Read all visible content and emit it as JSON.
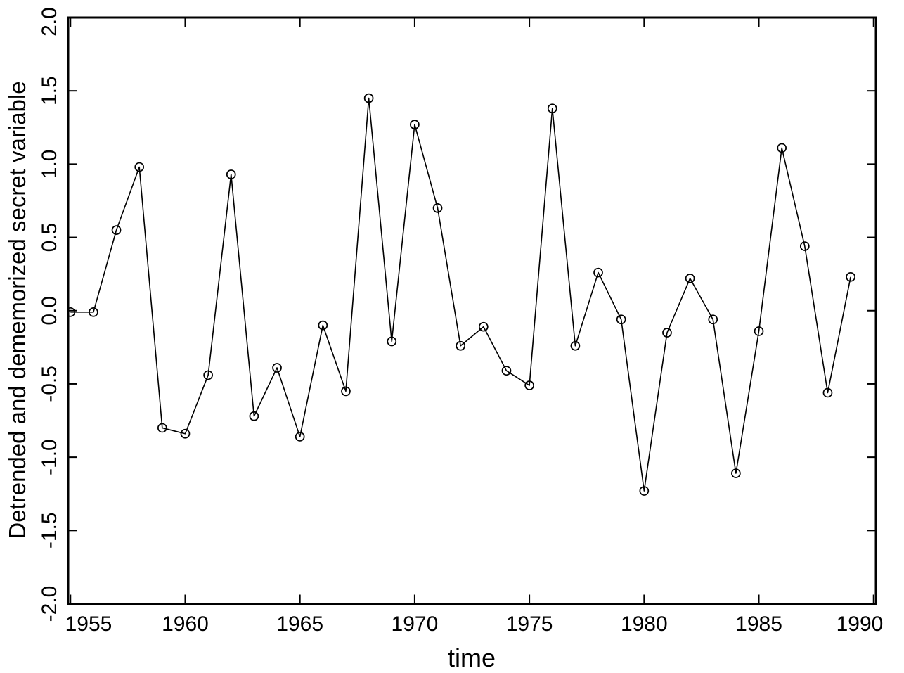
{
  "chart_data": {
    "type": "line",
    "title": "",
    "xlabel": "time",
    "ylabel": "Detrended and dememorized secret variable",
    "x": [
      1955,
      1956,
      1957,
      1958,
      1959,
      1960,
      1961,
      1962,
      1963,
      1964,
      1965,
      1966,
      1967,
      1968,
      1969,
      1970,
      1971,
      1972,
      1973,
      1974,
      1975,
      1976,
      1977,
      1978,
      1979,
      1980,
      1981,
      1982,
      1983,
      1984,
      1985,
      1986,
      1987,
      1988,
      1989
    ],
    "values": [
      -0.01,
      -0.01,
      0.55,
      0.98,
      -0.8,
      -0.84,
      -0.44,
      0.93,
      -0.72,
      -0.39,
      -0.86,
      -0.1,
      -0.55,
      1.45,
      -0.21,
      1.27,
      0.7,
      -0.24,
      -0.11,
      -0.41,
      -0.51,
      1.38,
      -0.24,
      0.26,
      -0.06,
      -1.23,
      -0.15,
      0.22,
      -0.06,
      -1.11,
      -0.14,
      1.11,
      0.44,
      -0.56,
      0.23
    ],
    "xlim": [
      1954.9,
      1990.1
    ],
    "ylim": [
      -2.0,
      2.0
    ],
    "x_ticks": [
      1955,
      1960,
      1965,
      1970,
      1975,
      1980,
      1985,
      1990
    ],
    "x_tick_labels": [
      "1955",
      "1960",
      "1965",
      "1970",
      "1975",
      "1980",
      "1985",
      "1990"
    ],
    "y_ticks": [
      -2.0,
      -1.5,
      -1.0,
      -0.5,
      0.0,
      0.5,
      1.0,
      1.5,
      2.0
    ],
    "y_tick_labels": [
      "-2.0",
      "-1.5",
      "-1.0",
      "-0.5",
      "0.0",
      "0.5",
      "1.0",
      "1.5",
      "2.0"
    ],
    "marker": "open-circle",
    "line_color": "#000000",
    "background_color": "#ffffff",
    "grid": false,
    "legend": null
  }
}
